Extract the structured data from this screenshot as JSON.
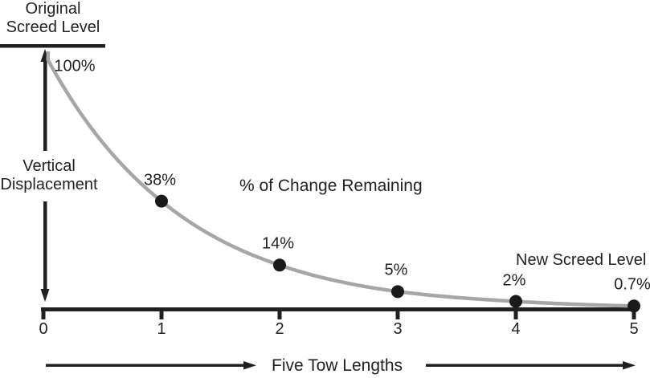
{
  "annotations": {
    "original_screed": {
      "line1": "Original",
      "line2": "Screed Level"
    },
    "vertical_axis": {
      "line1": "Vertical",
      "line2": "Displacement"
    },
    "curve_label": "% of Change Remaining",
    "new_screed": "New Screed Level",
    "x_axis_label": "Five Tow Lengths"
  },
  "colors": {
    "ink": "#231f20",
    "curve": "#a6a6a6",
    "dot": "#1a1a1a"
  },
  "chart_data": {
    "type": "line",
    "x": [
      0,
      1,
      2,
      3,
      4,
      5
    ],
    "values": [
      100,
      38,
      14,
      5,
      2,
      0.7
    ],
    "point_labels": [
      "100%",
      "38%",
      "14%",
      "5%",
      "2%",
      "0.7%"
    ],
    "x_ticks": [
      "0",
      "1",
      "2",
      "3",
      "4",
      "5"
    ],
    "title": "% of Change Remaining",
    "xlabel": "Five Tow Lengths",
    "ylabel": "Vertical Displacement",
    "annotations": [
      "Original Screed Level",
      "New Screed Level"
    ],
    "xlim": [
      0,
      5
    ],
    "ylim": [
      0,
      100
    ],
    "grid": false,
    "legend": false,
    "dots_at_x": [
      1,
      2,
      3,
      4,
      5
    ]
  }
}
